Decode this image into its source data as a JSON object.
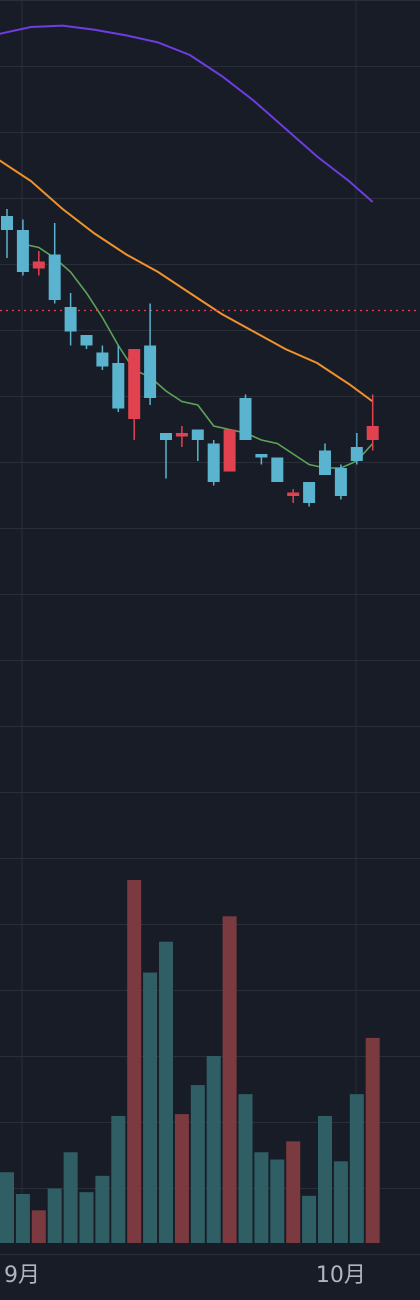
{
  "chart_data": {
    "type": "candlestick",
    "xlabel": "",
    "ylabel": "",
    "x_tick_labels": [
      {
        "label": "9月",
        "index": 0
      },
      {
        "label": "10月",
        "index": 21
      }
    ],
    "grid": true,
    "price_range": [
      0,
      100
    ],
    "current_price_line": 58.5,
    "candles": [
      {
        "o": 70.0,
        "h": 73.0,
        "l": 66.0,
        "c": 72.0
      },
      {
        "o": 64.0,
        "h": 71.5,
        "l": 63.5,
        "c": 70.0
      },
      {
        "o": 65.5,
        "h": 67.0,
        "l": 63.5,
        "c": 64.5
      },
      {
        "o": 60.0,
        "h": 71.0,
        "l": 59.5,
        "c": 66.5
      },
      {
        "o": 55.5,
        "h": 61.0,
        "l": 53.5,
        "c": 59.0
      },
      {
        "o": 53.5,
        "h": 55.0,
        "l": 53.0,
        "c": 55.0
      },
      {
        "o": 50.5,
        "h": 53.5,
        "l": 50.0,
        "c": 52.5
      },
      {
        "o": 44.5,
        "h": 53.5,
        "l": 44.0,
        "c": 51.0
      },
      {
        "o": 53.0,
        "h": 53.0,
        "l": 40.0,
        "c": 43.0
      },
      {
        "o": 46.0,
        "h": 59.5,
        "l": 45.0,
        "c": 53.5
      },
      {
        "o": 40.0,
        "h": 41.0,
        "l": 34.5,
        "c": 41.0
      },
      {
        "o": 41.0,
        "h": 42.0,
        "l": 39.0,
        "c": 40.5
      },
      {
        "o": 40.0,
        "h": 41.5,
        "l": 37.0,
        "c": 41.5
      },
      {
        "o": 34.0,
        "h": 40.0,
        "l": 33.5,
        "c": 39.5
      },
      {
        "o": 41.5,
        "h": 41.5,
        "l": 35.5,
        "c": 35.5
      },
      {
        "o": 40.0,
        "h": 46.5,
        "l": 40.0,
        "c": 46.0
      },
      {
        "o": 37.5,
        "h": 38.0,
        "l": 36.5,
        "c": 38.0
      },
      {
        "o": 34.0,
        "h": 37.5,
        "l": 34.0,
        "c": 37.5
      },
      {
        "o": 32.5,
        "h": 33.0,
        "l": 31.0,
        "c": 32.0
      },
      {
        "o": 31.0,
        "h": 34.0,
        "l": 30.5,
        "c": 34.0
      },
      {
        "o": 35.0,
        "h": 39.5,
        "l": 35.0,
        "c": 38.5
      },
      {
        "o": 32.0,
        "h": 36.5,
        "l": 31.5,
        "c": 36.0
      },
      {
        "o": 37.0,
        "h": 41.0,
        "l": 36.5,
        "c": 39.0
      },
      {
        "o": 42.0,
        "h": 46.5,
        "l": 38.5,
        "c": 40.0
      }
    ],
    "moving_averages": [
      {
        "color": "#6d3de0",
        "values": [
          null,
          null,
          null,
          null,
          null,
          null,
          null,
          null,
          null,
          null,
          null,
          null,
          null,
          null,
          null,
          null,
          null,
          null,
          null,
          null,
          null,
          null,
          null,
          null
        ],
        "path": [
          [
            -0.5,
            98.0
          ],
          [
            1.5,
            99.0
          ],
          [
            3.5,
            99.2
          ],
          [
            5.5,
            98.6
          ],
          [
            7.5,
            97.8
          ],
          [
            9.5,
            96.8
          ],
          [
            11.5,
            95.0
          ],
          [
            13.5,
            92.0
          ],
          [
            15.5,
            88.5
          ],
          [
            17.5,
            84.5
          ],
          [
            19.5,
            80.5
          ],
          [
            21.5,
            77.0
          ],
          [
            23.0,
            74.0
          ]
        ]
      },
      {
        "color": "#f0922c",
        "values": [
          null,
          null,
          null,
          null,
          null,
          null,
          null,
          null,
          null,
          null,
          null,
          null,
          null,
          null,
          null,
          null,
          null,
          null,
          null,
          null,
          null,
          null,
          null,
          null
        ],
        "path": [
          [
            -0.5,
            80.0
          ],
          [
            1.5,
            77.0
          ],
          [
            3.5,
            73.0
          ],
          [
            5.5,
            69.5
          ],
          [
            7.5,
            66.5
          ],
          [
            9.5,
            64.0
          ],
          [
            11.5,
            61.0
          ],
          [
            13.5,
            58.0
          ],
          [
            15.5,
            55.5
          ],
          [
            17.5,
            53.0
          ],
          [
            19.5,
            51.0
          ],
          [
            21.5,
            48.0
          ],
          [
            23.0,
            45.5
          ]
        ]
      },
      {
        "color": "#5ea35a",
        "values": [
          null,
          68.0,
          67.5,
          66.0,
          64.0,
          61.0,
          57.5,
          53.5,
          50.0,
          49.0,
          47.0,
          45.5,
          45.0,
          42.0,
          41.5,
          41.0,
          40.0,
          39.5,
          38.0,
          36.5,
          36.0,
          36.0,
          37.0,
          39.5
        ]
      }
    ],
    "volume": {
      "max": 100,
      "values": [
        19.5,
        13.5,
        9.0,
        15.0,
        25.0,
        14.0,
        18.5,
        35.0,
        100.0,
        74.5,
        83.0,
        35.5,
        43.5,
        51.5,
        90.0,
        41.0,
        25.0,
        23.0,
        28.0,
        13.0,
        35.0,
        22.5,
        41.0,
        56.5
      ]
    }
  },
  "colors": {
    "background": "#181c27",
    "grid": "#2a2e39",
    "up": "#5ab4cf",
    "down": "#e0434f",
    "volume_up": "#2f5f64",
    "volume_down": "#7a3a40",
    "price_line": "#e0434f",
    "axis_text": "#b2b5be"
  }
}
